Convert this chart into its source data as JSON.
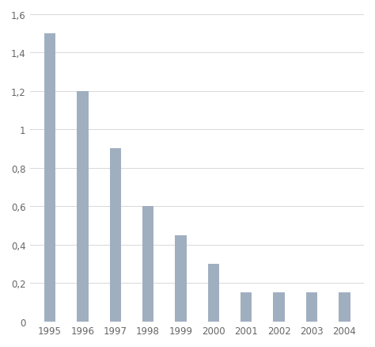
{
  "categories": [
    "1995",
    "1996",
    "1997",
    "1998",
    "1999",
    "2000",
    "2001",
    "2002",
    "2003",
    "2004"
  ],
  "values": [
    1.5,
    1.2,
    0.9,
    0.6,
    0.45,
    0.3,
    0.15,
    0.15,
    0.15,
    0.15
  ],
  "bar_color": "#a0afc0",
  "ylim": [
    0,
    1.6
  ],
  "yticks": [
    0,
    0.2,
    0.4,
    0.6,
    0.8,
    1.0,
    1.2,
    1.4,
    1.6
  ],
  "ytick_labels": [
    "0",
    "0,2",
    "0,4",
    "0,6",
    "0,8",
    "1",
    "1,2",
    "1,4",
    "1,6"
  ],
  "background_color": "#ffffff",
  "grid_color": "#d8d8d8",
  "bar_width": 0.35,
  "tick_fontsize": 8.5
}
